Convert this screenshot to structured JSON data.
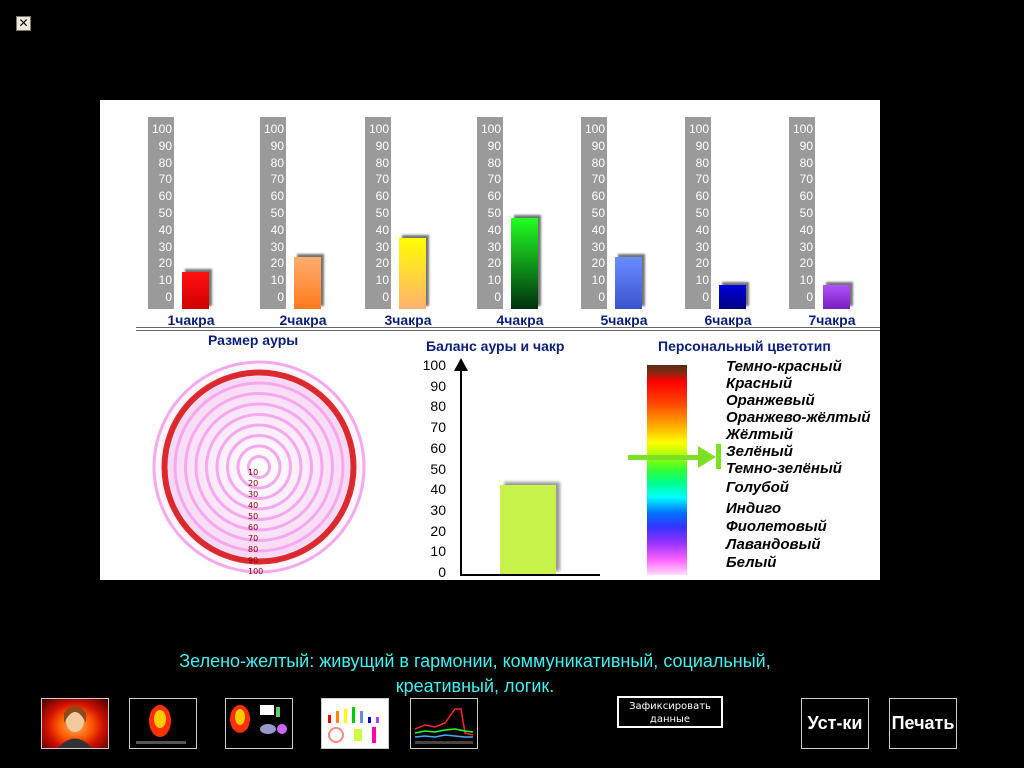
{
  "window": {
    "close_glyph": "✕"
  },
  "chakras": [
    {
      "label": "1чакра",
      "value": 22,
      "color_top": "#ff1010",
      "color_bottom": "#d00000"
    },
    {
      "label": "2чакра",
      "value": 31,
      "color_top": "#ffae70",
      "color_bottom": "#ff7a1a"
    },
    {
      "label": "3чакра",
      "value": 42,
      "color_top": "#ffff00",
      "color_bottom": "#ffb070"
    },
    {
      "label": "4чакра",
      "value": 54,
      "color_top": "#22ff22",
      "color_bottom": "#003010"
    },
    {
      "label": "5чакра",
      "value": 31,
      "color_top": "#6a8cff",
      "color_bottom": "#3a55cc"
    },
    {
      "label": "6чакра",
      "value": 14,
      "color_top": "#0000e0",
      "color_bottom": "#000080"
    },
    {
      "label": "7чакра",
      "value": 14,
      "color_top": "#b050ff",
      "color_bottom": "#7a20c0"
    }
  ],
  "chakra_scale": [
    "100",
    "90",
    "80",
    "70",
    "60",
    "50",
    "40",
    "30",
    "20",
    "10",
    "0"
  ],
  "aura": {
    "title": "Размер ауры",
    "scale_labels": [
      "10",
      "20",
      "30",
      "40",
      "50",
      "60",
      "70",
      "80",
      "90",
      "100"
    ],
    "value": 90
  },
  "balance": {
    "title": "Баланс ауры и чакр",
    "ticks": [
      "100",
      "90",
      "80",
      "70",
      "60",
      "50",
      "40",
      "30",
      "20",
      "10",
      "0"
    ],
    "value": 43
  },
  "colortype": {
    "title": "Персональный цветотип",
    "labels": [
      "Темно-красный",
      "Красный",
      "Оранжевый",
      "Оранжево-жёлтый",
      "Жёлтый",
      "Зелёный",
      "Темно-зелёный",
      "Голубой",
      "Индиго",
      "Фиолетовый",
      "Лавандовый",
      "Белый"
    ],
    "selected": "Зелёный"
  },
  "description": {
    "line1": "Зелено-желтый: живущий в гармонии, коммуникативный, социальный,",
    "line2": "креативный, логик."
  },
  "buttons": {
    "fix_line1": "Зафиксировать",
    "fix_line2": "данные",
    "settings": "Уст-ки",
    "print": "Печать"
  },
  "colors": {
    "label_blue": "#0b1f7a",
    "description_cyan": "#3ff2f0",
    "marker_green": "#7ee023"
  }
}
